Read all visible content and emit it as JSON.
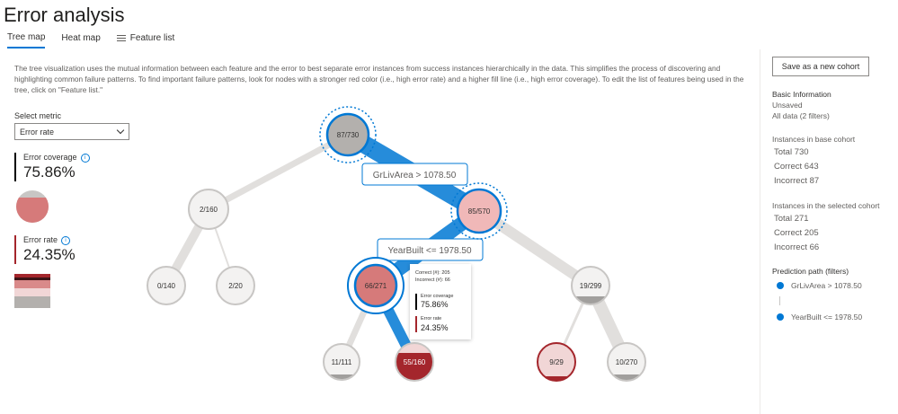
{
  "header": {
    "title": "Error analysis"
  },
  "tabs": [
    {
      "label": "Tree map",
      "active": true
    },
    {
      "label": "Heat map",
      "active": false
    },
    {
      "label": "Feature list",
      "active": false
    }
  ],
  "description": "The tree visualization uses the mutual information between each feature and the error to best separate error instances from success instances hierarchically in the data. This simplifies the process of discovering and highlighting common failure patterns. To find important failure patterns, look for nodes with a stronger red color (i.e., high error rate) and a higher fill line (i.e., high error coverage). To edit the list of features being used in the tree, click on \"Feature list.\"",
  "metric": {
    "label": "Select metric",
    "selected": "Error rate"
  },
  "error_coverage": {
    "label": "Error coverage",
    "value": "75.86%",
    "color": "#000000",
    "icon": "info-icon"
  },
  "error_rate": {
    "label": "Error rate",
    "value": "24.35%",
    "color": "#a4262c",
    "icon": "info-icon"
  },
  "sidebar": {
    "save_label": "Save as a new cohort",
    "basic_heading": "Basic Information",
    "status": "Unsaved",
    "filters": "All data (2 filters)",
    "base_heading": "Instances in base cohort",
    "base_total": "Total 730",
    "base_correct": "Correct 643",
    "base_incorrect": "Incorrect 87",
    "sel_heading": "Instances in the selected cohort",
    "sel_total": "Total 271",
    "sel_correct": "Correct 205",
    "sel_incorrect": "Incorrect 66",
    "path_heading": "Prediction path (filters)",
    "path": [
      "GrLivArea > 1078.50",
      "YearBuilt <= 1978.50"
    ]
  },
  "tree": {
    "edge_labels": [
      "GrLivArea > 1078.50",
      "YearBuilt <= 1978.50"
    ],
    "nodes": {
      "root": "87/730",
      "l1": "2/160",
      "r1": "85/570",
      "ll": "0/140",
      "lr": "2/20",
      "sel": "66/271",
      "rr": "19/299",
      "a": "11/111",
      "b": "55/160",
      "c": "9/29",
      "d": "10/270"
    }
  },
  "tooltip": {
    "correct": "Correct (#): 205",
    "incorrect": "Incorrect (#): 66",
    "coverage_label": "Error coverage",
    "coverage_value": "75.86%",
    "rate_label": "Error rate",
    "rate_value": "24.35%"
  },
  "colors": {
    "accent": "#0078d4",
    "error_dark": "#a4262c",
    "error_light": "#d67a7a",
    "node_grey": "#c8c6c4"
  }
}
